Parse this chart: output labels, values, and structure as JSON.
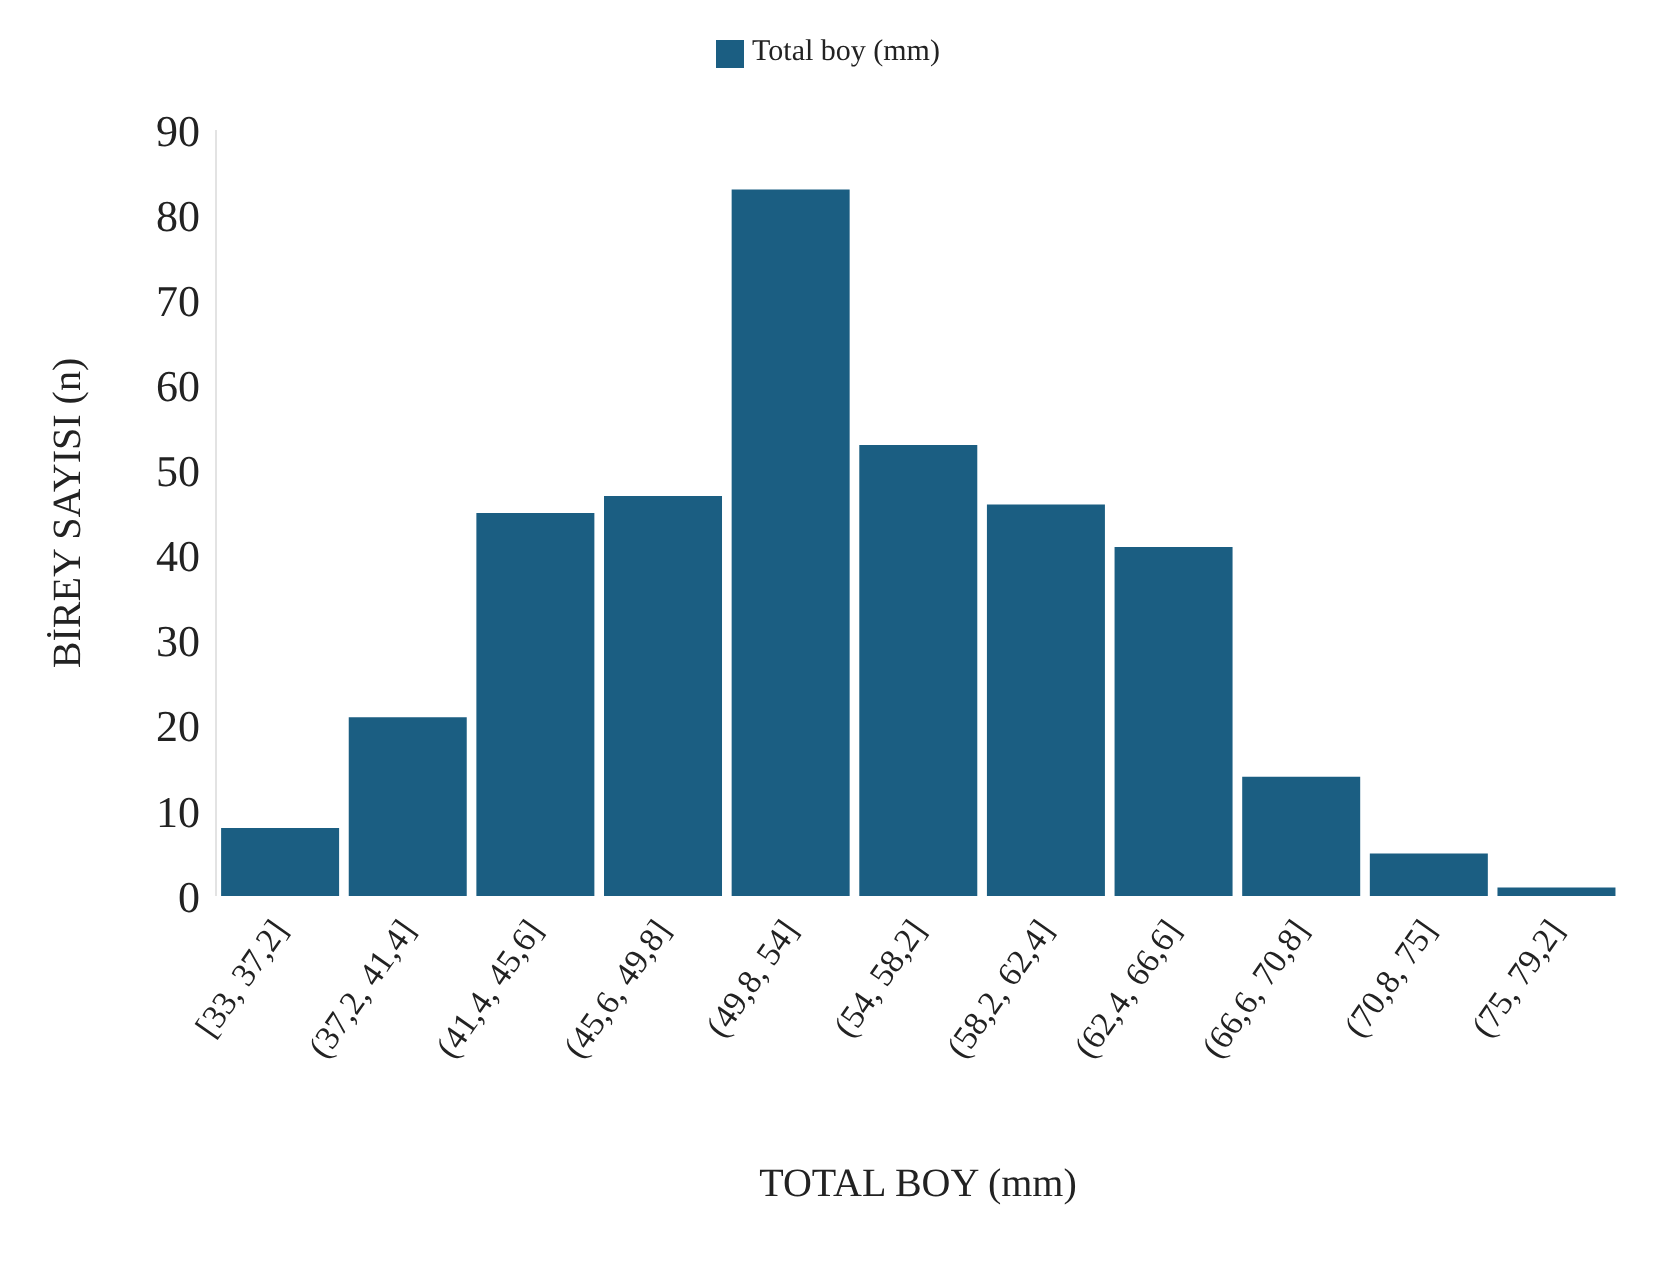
{
  "chart_data": {
    "type": "bar",
    "xlabel": "TOTAL BOY (mm)",
    "ylabel": "BİREY SAYISI (n)",
    "categories": [
      "[33, 37,2]",
      "(37,2, 41,4]",
      "(41,4, 45,6]",
      "(45,6, 49,8]",
      "(49,8, 54]",
      "(54, 58,2]",
      "(58,2, 62,4]",
      "(62,4, 66,6]",
      "(66,6, 70,8]",
      "(70,8, 75]",
      "(75, 79,2]"
    ],
    "series": [
      {
        "name": "Total boy (mm)",
        "color": "#1b5e82",
        "values": [
          8,
          21,
          45,
          47,
          83,
          53,
          46,
          41,
          14,
          5,
          1
        ]
      }
    ],
    "ylim": [
      0,
      90
    ],
    "yticks": [
      0,
      10,
      20,
      30,
      40,
      50,
      60,
      70,
      80,
      90
    ],
    "grid": false,
    "legend": "top"
  }
}
